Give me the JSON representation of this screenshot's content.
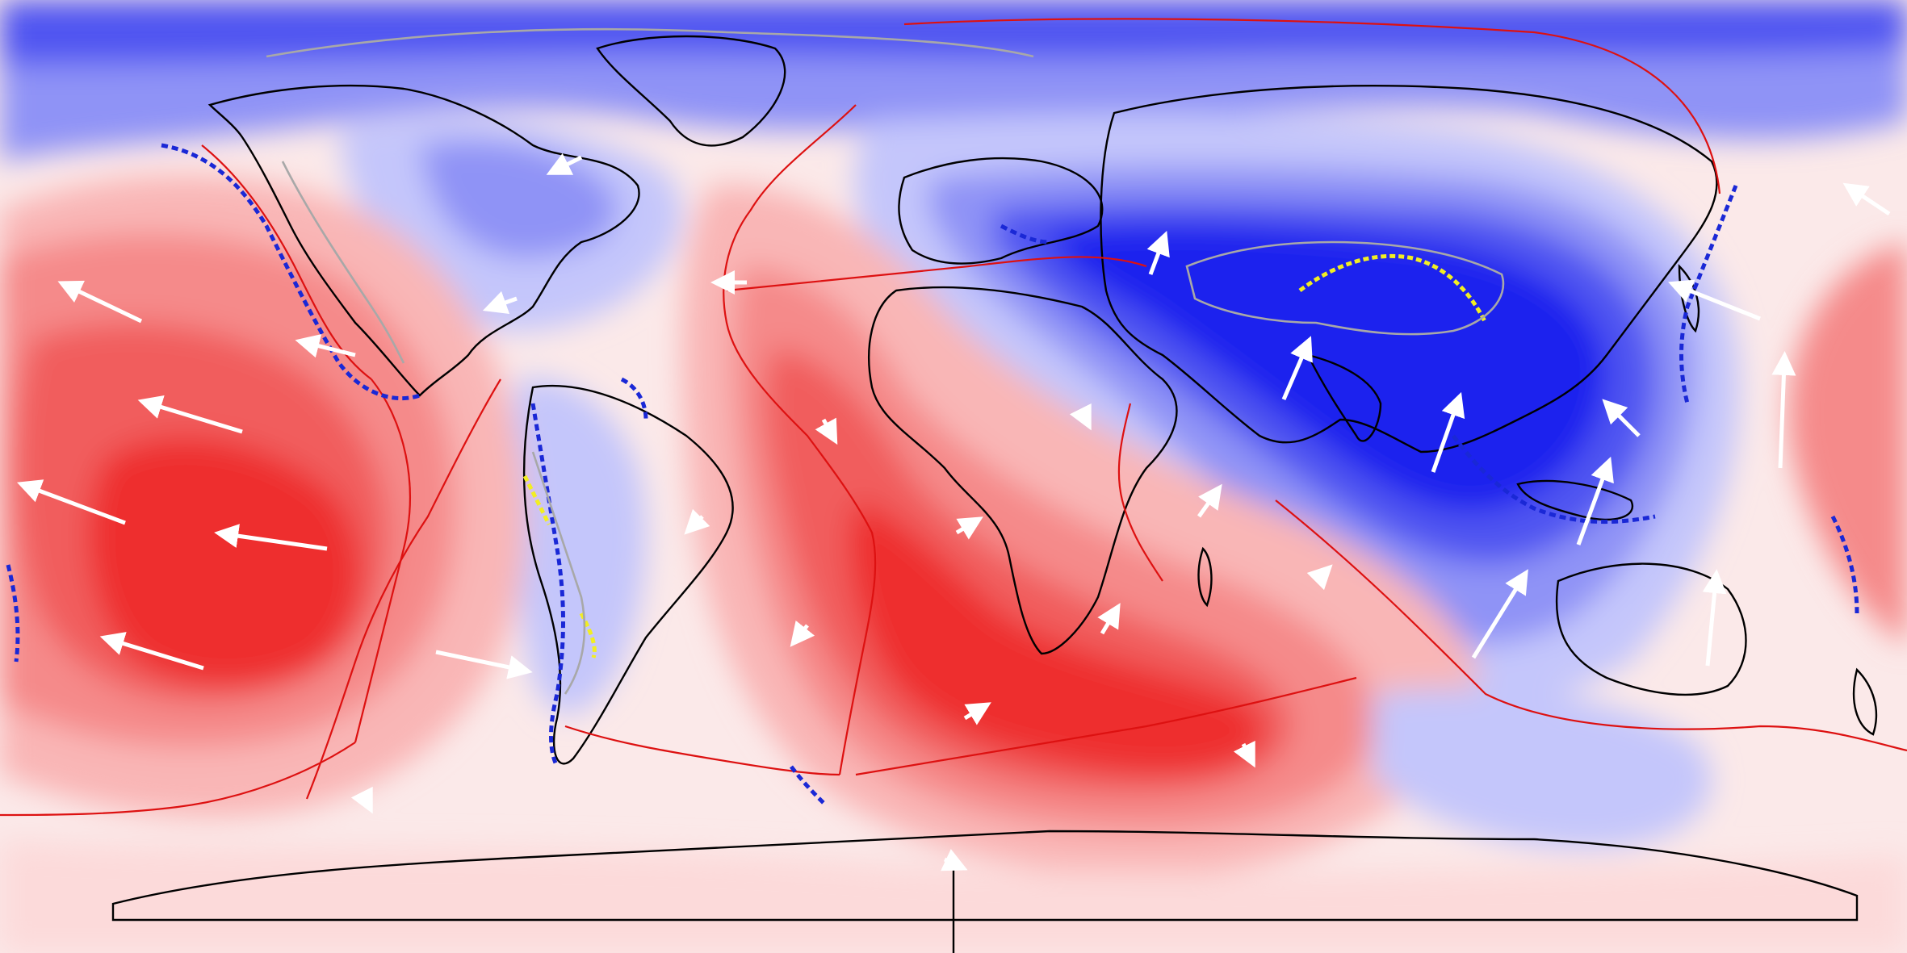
{
  "map": {
    "projection": "equirectangular",
    "field_colors": {
      "negative_strong": "#1f24ee",
      "negative_mid": "#4f55f1",
      "negative_light": "#8f93f6",
      "negative_pale": "#c4c6fb",
      "negative_faint": "#e6e7fd",
      "neutral": "#fbe9e9",
      "positive_faint": "#fcdada",
      "positive_pale": "#f9b6b6",
      "positive_light": "#f58a8a",
      "positive_mid": "#f15d5d",
      "positive_strong": "#ee2d2d"
    },
    "line_colors": {
      "coastline": "#000000",
      "plate_boundary": "#dd1111",
      "subduction_pacific": "#1a28d6",
      "subduction_collision": "#f2ee22",
      "orogen_outline": "#a8a8a8",
      "velocity_arrow": "#ffffff"
    },
    "features": [
      "negative-anomaly-eurasia",
      "positive-anomaly-pacific",
      "positive-anomaly-africa-atlantic",
      "plate-boundaries",
      "subduction-zones",
      "collision-zone-himalaya",
      "velocity-arrows"
    ]
  }
}
